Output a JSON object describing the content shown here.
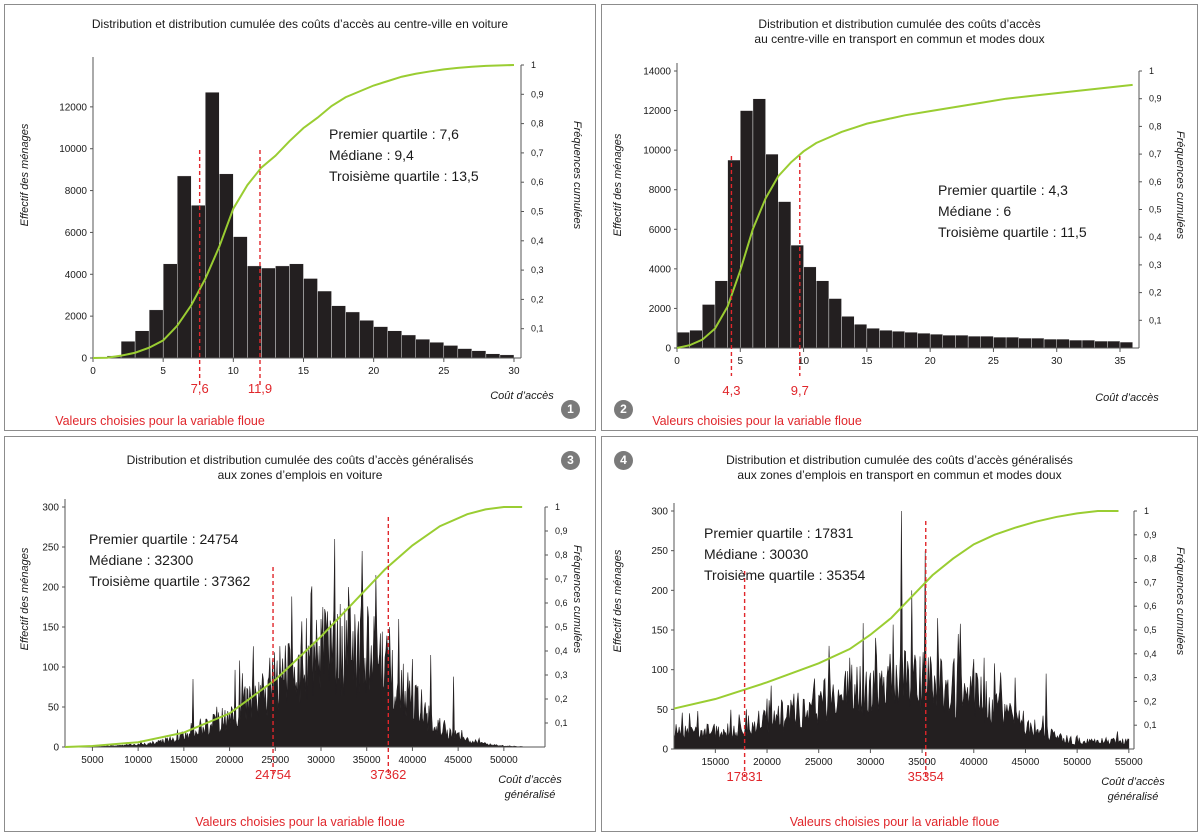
{
  "colors": {
    "bars": "#231f20",
    "cumulative": "#9acd32",
    "chosen": "#e0262b",
    "badge": "#7a7a7a"
  },
  "chart_data": [
    {
      "id": "1",
      "type": "bar",
      "title": "Distribution et distribution cumulée des coûts d’accès  au centre-ville en voiture",
      "ylabel": "Effectif des ménages",
      "y2label": "Fréquences cumulées",
      "xlabel": "Coût d’accès",
      "xlim": [
        0,
        30.5
      ],
      "ylim": [
        0,
        14000
      ],
      "y2lim": [
        0,
        1
      ],
      "xticks": [
        0,
        5,
        10,
        15,
        20,
        25,
        30
      ],
      "yticks": [
        0,
        2000,
        4000,
        6000,
        8000,
        10000,
        12000
      ],
      "y2ticks": [
        "0,1",
        "0,2",
        "0,3",
        "0,4",
        "0,5",
        "0,6",
        "0,7",
        "0,8",
        "0,9",
        "1"
      ],
      "bins": {
        "start": 0,
        "width": 1,
        "values": [
          30,
          100,
          800,
          1300,
          2300,
          4500,
          8700,
          7300,
          12700,
          8800,
          5800,
          4400,
          4300,
          4400,
          4500,
          3800,
          3200,
          2500,
          2200,
          1800,
          1500,
          1300,
          1100,
          900,
          750,
          600,
          450,
          350,
          200,
          150,
          60
        ]
      },
      "cumulative": [
        [
          0,
          0
        ],
        [
          1,
          0.001
        ],
        [
          2,
          0.008
        ],
        [
          3,
          0.018
        ],
        [
          4,
          0.035
        ],
        [
          5,
          0.06
        ],
        [
          6,
          0.11
        ],
        [
          7,
          0.18
        ],
        [
          8,
          0.27
        ],
        [
          9,
          0.38
        ],
        [
          10,
          0.51
        ],
        [
          11,
          0.59
        ],
        [
          12,
          0.65
        ],
        [
          13,
          0.69
        ],
        [
          14,
          0.74
        ],
        [
          15,
          0.785
        ],
        [
          16,
          0.82
        ],
        [
          17,
          0.86
        ],
        [
          18,
          0.89
        ],
        [
          19,
          0.91
        ],
        [
          20,
          0.93
        ],
        [
          21,
          0.945
        ],
        [
          22,
          0.96
        ],
        [
          23,
          0.97
        ],
        [
          24,
          0.978
        ],
        [
          25,
          0.985
        ],
        [
          26,
          0.99
        ],
        [
          27,
          0.994
        ],
        [
          28,
          0.997
        ],
        [
          30,
          1
        ]
      ],
      "chosen_values": [
        7.6,
        11.9
      ],
      "chosen_labels": [
        "7,6",
        "11,9"
      ],
      "stats": [
        "Premier quartile : 7,6",
        "Médiane : 9,4",
        "Troisième quartile : 13,5"
      ],
      "caption": "Valeurs choisies pour la variable floue",
      "badge": "1"
    },
    {
      "id": "2",
      "type": "bar",
      "title": "Distribution et distribution cumulée des coûts d’accès\nau centre-ville en transport en commun et modes doux",
      "ylabel": "Effectif des ménages",
      "y2label": "Fréquences cumulées",
      "xlabel": "Coût d’accès",
      "xlim": [
        0,
        36.5
      ],
      "ylim": [
        0,
        14000
      ],
      "y2lim": [
        0,
        1
      ],
      "xticks": [
        0,
        5,
        10,
        15,
        20,
        25,
        30,
        35
      ],
      "yticks": [
        0,
        2000,
        4000,
        6000,
        8000,
        10000,
        12000,
        14000
      ],
      "y2ticks": [
        "0,1",
        "0,2",
        "0,3",
        "0,4",
        "0,5",
        "0,6",
        "0,7",
        "0,8",
        "0,9",
        "1"
      ],
      "bins": {
        "start": 0,
        "width": 1,
        "values": [
          800,
          900,
          2200,
          3400,
          9500,
          12000,
          12600,
          9800,
          7400,
          5200,
          4100,
          3400,
          2500,
          1600,
          1200,
          1000,
          900,
          850,
          800,
          750,
          700,
          650,
          650,
          600,
          600,
          550,
          550,
          500,
          500,
          450,
          450,
          400,
          400,
          350,
          350,
          300
        ]
      },
      "cumulative": [
        [
          0,
          0
        ],
        [
          1,
          0.01
        ],
        [
          2,
          0.03
        ],
        [
          3,
          0.07
        ],
        [
          4,
          0.15
        ],
        [
          5,
          0.28
        ],
        [
          6,
          0.43
        ],
        [
          7,
          0.54
        ],
        [
          8,
          0.62
        ],
        [
          9,
          0.67
        ],
        [
          10,
          0.71
        ],
        [
          11,
          0.74
        ],
        [
          12,
          0.76
        ],
        [
          13,
          0.78
        ],
        [
          14,
          0.795
        ],
        [
          15,
          0.81
        ],
        [
          16,
          0.82
        ],
        [
          17,
          0.83
        ],
        [
          18,
          0.84
        ],
        [
          20,
          0.855
        ],
        [
          22,
          0.87
        ],
        [
          24,
          0.885
        ],
        [
          26,
          0.9
        ],
        [
          28,
          0.91
        ],
        [
          30,
          0.92
        ],
        [
          32,
          0.93
        ],
        [
          34,
          0.94
        ],
        [
          36,
          0.95
        ]
      ],
      "chosen_values": [
        4.3,
        9.7
      ],
      "chosen_labels": [
        "4,3",
        "9,7"
      ],
      "stats": [
        "Premier quartile : 4,3",
        "Médiane : 6",
        "Troisième quartile : 11,5"
      ],
      "caption": "Valeurs choisies pour la variable floue",
      "badge": "2"
    },
    {
      "id": "3",
      "type": "bar",
      "title": "Distribution et distribution cumulée des coûts d’accès généralisés\naux zones d’emplois en voiture",
      "ylabel": "Effectif des ménages",
      "y2label": "Fréquences cumulées",
      "xlabel": "Coût d’accès\ngénéralisé",
      "xlim": [
        2000,
        54500
      ],
      "ylim": [
        0,
        300
      ],
      "y2lim": [
        0,
        1
      ],
      "xticks": [
        5000,
        10000,
        15000,
        20000,
        25000,
        30000,
        35000,
        40000,
        45000,
        50000
      ],
      "yticks": [
        0,
        50,
        100,
        150,
        200,
        250,
        300
      ],
      "y2ticks": [
        "0,1",
        "0,2",
        "0,3",
        "0,4",
        "0,5",
        "0,6",
        "0,7",
        "0,8",
        "0,9",
        "1"
      ],
      "density": {
        "start": 2000,
        "end": 52000,
        "bin": 100,
        "peak_center": 33000,
        "peak_height": 140,
        "spread_left": 12000,
        "spread_right": 8000,
        "spikes": [
          [
            16000,
            85
          ],
          [
            21500,
            55
          ],
          [
            24500,
            75
          ],
          [
            28000,
            105
          ],
          [
            30000,
            160
          ],
          [
            31500,
            260
          ],
          [
            33000,
            200
          ],
          [
            34500,
            245
          ],
          [
            36000,
            215
          ],
          [
            37500,
            150
          ],
          [
            38500,
            160
          ],
          [
            40000,
            110
          ],
          [
            42000,
            115
          ],
          [
            44500,
            55
          ]
        ]
      },
      "cumulative": [
        [
          2000,
          0
        ],
        [
          5000,
          0.004
        ],
        [
          10000,
          0.02
        ],
        [
          15000,
          0.06
        ],
        [
          20000,
          0.14
        ],
        [
          25000,
          0.28
        ],
        [
          30000,
          0.46
        ],
        [
          33000,
          0.58
        ],
        [
          37000,
          0.74
        ],
        [
          40000,
          0.84
        ],
        [
          43000,
          0.92
        ],
        [
          46000,
          0.97
        ],
        [
          48000,
          0.99
        ],
        [
          50000,
          1
        ],
        [
          52000,
          1
        ]
      ],
      "chosen_values": [
        24754,
        37362
      ],
      "chosen_labels": [
        "24754",
        "37362"
      ],
      "stats": [
        "Premier quartile : 24754",
        "Médiane : 32300",
        "Troisième quartile : 37362"
      ],
      "caption": "Valeurs choisies pour la variable floue",
      "badge": "3"
    },
    {
      "id": "4",
      "type": "bar",
      "title": "Distribution et distribution cumulée des coûts d’accès généralisés\naux zones d’emplois en transport en commun et modes doux",
      "ylabel": "Effectif des ménages",
      "y2label": "Fréquences cumulées",
      "xlabel": "Coût d’accès\ngénéralisé",
      "xlim": [
        11000,
        55500
      ],
      "ylim": [
        0,
        300
      ],
      "y2lim": [
        0,
        1
      ],
      "xticks": [
        15000,
        20000,
        25000,
        30000,
        35000,
        40000,
        45000,
        50000,
        55000
      ],
      "yticks": [
        0,
        50,
        100,
        150,
        200,
        250,
        300
      ],
      "y2ticks": [
        "0,1",
        "0,2",
        "0,3",
        "0,4",
        "0,5",
        "0,6",
        "0,7",
        "0,8",
        "0,9",
        "1"
      ],
      "density": {
        "start": 11000,
        "end": 55000,
        "bin": 100,
        "peak_center": 35000,
        "peak_height": 95,
        "spread_left": 16000,
        "spread_right": 10000,
        "floor": 25,
        "spikes": [
          [
            12500,
            45
          ],
          [
            18000,
            50
          ],
          [
            22000,
            55
          ],
          [
            26000,
            130
          ],
          [
            28000,
            115
          ],
          [
            30500,
            140
          ],
          [
            33000,
            190
          ],
          [
            34000,
            200
          ],
          [
            35300,
            250
          ],
          [
            36500,
            165
          ],
          [
            38500,
            145
          ],
          [
            41000,
            115
          ],
          [
            44000,
            90
          ],
          [
            47000,
            95
          ]
        ]
      },
      "cumulative": [
        [
          11000,
          0.17
        ],
        [
          15000,
          0.21
        ],
        [
          20000,
          0.28
        ],
        [
          25000,
          0.36
        ],
        [
          28000,
          0.42
        ],
        [
          30000,
          0.48
        ],
        [
          32000,
          0.55
        ],
        [
          34000,
          0.64
        ],
        [
          36000,
          0.73
        ],
        [
          38000,
          0.8
        ],
        [
          40000,
          0.86
        ],
        [
          42000,
          0.9
        ],
        [
          44000,
          0.93
        ],
        [
          46000,
          0.955
        ],
        [
          48000,
          0.975
        ],
        [
          50000,
          0.99
        ],
        [
          52000,
          1
        ],
        [
          54000,
          1
        ]
      ],
      "chosen_values": [
        17831,
        35354
      ],
      "chosen_labels": [
        "17831",
        "35354"
      ],
      "stats": [
        "Premier quartile : 17831",
        "Médiane : 30030",
        "Troisième quartile : 35354"
      ],
      "caption": "Valeurs choisies pour la variable floue",
      "badge": "4"
    }
  ]
}
